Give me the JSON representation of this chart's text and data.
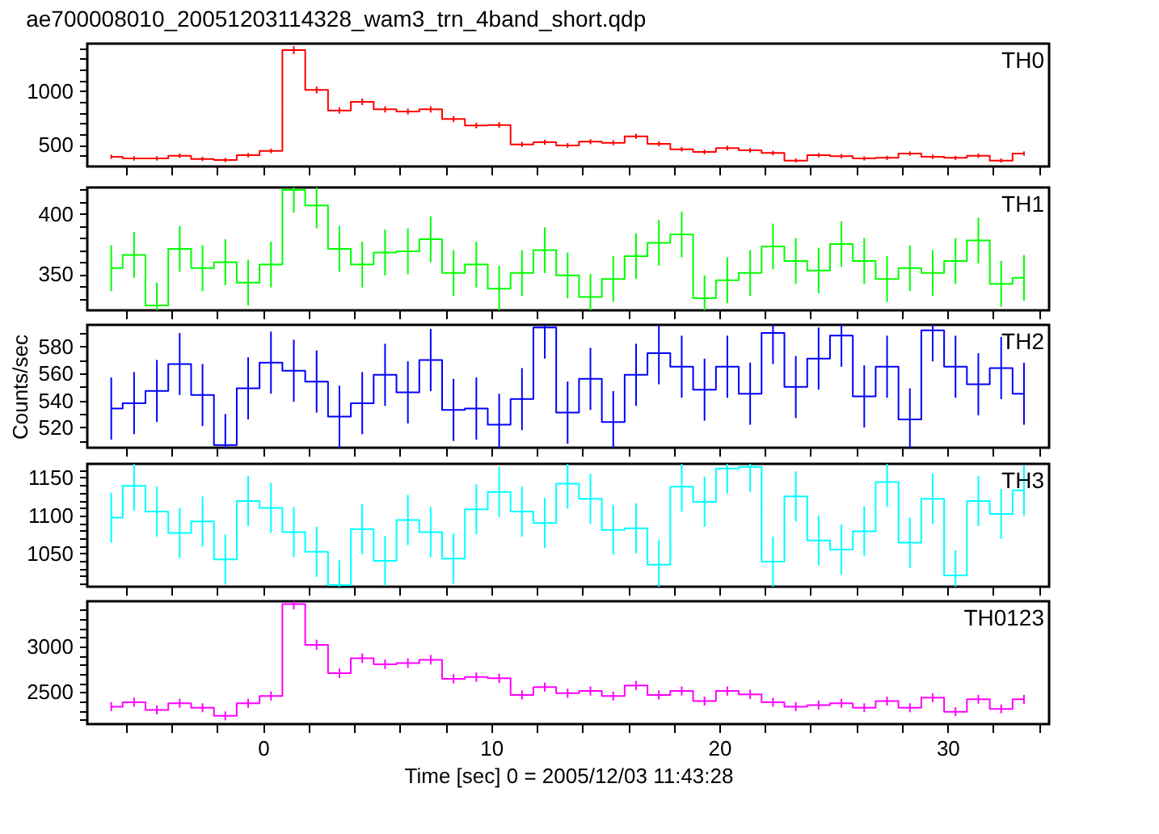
{
  "chart_data": [
    {
      "type": "step",
      "title": "ae700008010_20051203114328_wam3_trn_4band_short.qdp",
      "tick_labels": "y",
      "grid": false,
      "x": [
        -6.65,
        -5.65,
        -4.65,
        -3.65,
        -2.65,
        -1.65,
        -0.65,
        0.35,
        1.35,
        2.35,
        3.35,
        4.35,
        5.35,
        6.35,
        7.35,
        8.35,
        9.35,
        10.35,
        11.35,
        12.35,
        13.35,
        14.35,
        15.35,
        16.35,
        17.35,
        18.35,
        19.35,
        20.35,
        21.35,
        22.35,
        23.35,
        24.35,
        25.35,
        26.35,
        27.35,
        28.35,
        29.35,
        30.35,
        31.35,
        32.35,
        33.35
      ],
      "series": [
        {
          "name": "TH0",
          "color": "#ff0000",
          "values": [
            390,
            375,
            375,
            400,
            370,
            360,
            405,
            445,
            1380,
            1010,
            820,
            900,
            830,
            810,
            830,
            740,
            680,
            685,
            505,
            525,
            495,
            530,
            520,
            580,
            510,
            460,
            435,
            470,
            450,
            425,
            355,
            405,
            395,
            375,
            380,
            420,
            390,
            380,
            400,
            355,
            420
          ],
          "errors": [
            20,
            20,
            20,
            20,
            20,
            20,
            20,
            21,
            37,
            32,
            29,
            30,
            29,
            28,
            29,
            27,
            26,
            26,
            23,
            23,
            22,
            23,
            23,
            24,
            23,
            21,
            21,
            22,
            21,
            21,
            19,
            20,
            20,
            19,
            19,
            20,
            20,
            19,
            20,
            19,
            20
          ]
        }
      ],
      "xlim": [
        -7.7,
        34.45
      ],
      "xticks": [
        {
          "value": -6,
          "label": null
        },
        {
          "value": -4,
          "label": null
        },
        {
          "value": -2,
          "label": null
        },
        0,
        {
          "value": 2,
          "label": null
        },
        {
          "value": 4,
          "label": null
        },
        {
          "value": 6,
          "label": null
        },
        {
          "value": 8,
          "label": null
        },
        10,
        {
          "value": 12,
          "label": null
        },
        {
          "value": 14,
          "label": null
        },
        {
          "value": 16,
          "label": null
        },
        {
          "value": 18,
          "label": null
        },
        20,
        {
          "value": 22,
          "label": null
        },
        {
          "value": 24,
          "label": null
        },
        {
          "value": 26,
          "label": null
        },
        {
          "value": 28,
          "label": null
        },
        30,
        {
          "value": 32,
          "label": null
        },
        {
          "value": 34,
          "label": null
        }
      ],
      "ylim": [
        300,
        1440
      ],
      "yticks": [
        {
          "value": 400,
          "label": null
        },
        500,
        {
          "value": 600,
          "label": null
        },
        {
          "value": 700,
          "label": null
        },
        {
          "value": 800,
          "label": null
        },
        {
          "value": 900,
          "label": null
        },
        1000,
        {
          "value": 1100,
          "label": null
        },
        {
          "value": 1200,
          "label": null
        },
        {
          "value": 1300,
          "label": null
        },
        {
          "value": 1400,
          "label": null
        }
      ]
    },
    {
      "type": "step",
      "tick_labels": "y",
      "grid": false,
      "x": [
        -6.65,
        -5.65,
        -4.65,
        -3.65,
        -2.65,
        -1.65,
        -0.65,
        0.35,
        1.35,
        2.35,
        3.35,
        4.35,
        5.35,
        6.35,
        7.35,
        8.35,
        9.35,
        10.35,
        11.35,
        12.35,
        13.35,
        14.35,
        15.35,
        16.35,
        17.35,
        18.35,
        19.35,
        20.35,
        21.35,
        22.35,
        23.35,
        24.35,
        25.35,
        26.35,
        27.35,
        28.35,
        29.35,
        30.35,
        31.35,
        32.35,
        33.35
      ],
      "series": [
        {
          "name": "TH1",
          "color": "#00ff00",
          "values": [
            355,
            366,
            324,
            371,
            355,
            360,
            343,
            358,
            420,
            407,
            371,
            358,
            368,
            369,
            379,
            351,
            358,
            338,
            351,
            370,
            349,
            331,
            346,
            365,
            376,
            383,
            330,
            345,
            351,
            373,
            361,
            353,
            375,
            361,
            346,
            355,
            351,
            361,
            378,
            342,
            347
          ],
          "errors": [
            19,
            19,
            [
              320,
              343
            ],
            19,
            19,
            19,
            19,
            19,
            [
              401,
              422
            ],
            [
              388,
              422
            ],
            19,
            19,
            19,
            19,
            19,
            19,
            19,
            [
              320,
              357
            ],
            19,
            19,
            19,
            [
              320,
              350
            ],
            19,
            19,
            19,
            19,
            [
              320,
              349
            ],
            19,
            19,
            19,
            19,
            19,
            19,
            19,
            19,
            19,
            19,
            19,
            19,
            19,
            19
          ]
        }
      ],
      "xlim": [
        -7.7,
        34.45
      ],
      "xticks": [
        {
          "value": -6,
          "label": null
        },
        {
          "value": -4,
          "label": null
        },
        {
          "value": -2,
          "label": null
        },
        0,
        {
          "value": 2,
          "label": null
        },
        {
          "value": 4,
          "label": null
        },
        {
          "value": 6,
          "label": null
        },
        {
          "value": 8,
          "label": null
        },
        10,
        {
          "value": 12,
          "label": null
        },
        {
          "value": 14,
          "label": null
        },
        {
          "value": 16,
          "label": null
        },
        {
          "value": 18,
          "label": null
        },
        20,
        {
          "value": 22,
          "label": null
        },
        {
          "value": 24,
          "label": null
        },
        {
          "value": 26,
          "label": null
        },
        {
          "value": 28,
          "label": null
        },
        30,
        {
          "value": 32,
          "label": null
        },
        {
          "value": 34,
          "label": null
        }
      ],
      "ylim": [
        320,
        422
      ],
      "yticks": [
        {
          "value": 330,
          "label": null
        },
        {
          "value": 340,
          "label": null
        },
        350,
        {
          "value": 360,
          "label": null
        },
        {
          "value": 370,
          "label": null
        },
        {
          "value": 380,
          "label": null
        },
        {
          "value": 390,
          "label": null
        },
        400,
        {
          "value": 410,
          "label": null
        },
        {
          "value": 420,
          "label": null
        }
      ]
    },
    {
      "type": "step",
      "ylabel": "Counts/sec",
      "tick_labels": "y",
      "grid": false,
      "x": [
        -6.65,
        -5.65,
        -4.65,
        -3.65,
        -2.65,
        -1.65,
        -0.65,
        0.35,
        1.35,
        2.35,
        3.35,
        4.35,
        5.35,
        6.35,
        7.35,
        8.35,
        9.35,
        10.35,
        11.35,
        12.35,
        13.35,
        14.35,
        15.35,
        16.35,
        17.35,
        18.35,
        19.35,
        20.35,
        21.35,
        22.35,
        23.35,
        24.35,
        25.35,
        26.35,
        27.35,
        28.35,
        29.35,
        30.35,
        31.35,
        32.35,
        33.35
      ],
      "series": [
        {
          "name": "TH2",
          "color": "#0000ff",
          "values": [
            534,
            538,
            547,
            567,
            544,
            507,
            549,
            568,
            562,
            554,
            528,
            538,
            559,
            546,
            570,
            533,
            534,
            522,
            541,
            594,
            531,
            556,
            524,
            559,
            575,
            565,
            548,
            565,
            545,
            590,
            550,
            571,
            588,
            543,
            565,
            526,
            592,
            565,
            552,
            564,
            545
          ],
          "errors": [
            23,
            23,
            23,
            23,
            23,
            [
              505,
              530
            ],
            23,
            23,
            23,
            23,
            23,
            23,
            23,
            23,
            23,
            23,
            23,
            [
              505,
              545
            ],
            23,
            [
              571,
              596
            ],
            23,
            23,
            [
              505,
              547
            ],
            23,
            [
              552,
              596
            ],
            23,
            23,
            23,
            23,
            [
              567,
              596
            ],
            23,
            23,
            [
              565,
              596
            ],
            23,
            23,
            [
              505,
              549
            ],
            [
              569,
              596
            ],
            23,
            23,
            23,
            23
          ]
        }
      ],
      "xlim": [
        -7.7,
        34.45
      ],
      "xticks": [
        {
          "value": -6,
          "label": null
        },
        {
          "value": -4,
          "label": null
        },
        {
          "value": -2,
          "label": null
        },
        0,
        {
          "value": 2,
          "label": null
        },
        {
          "value": 4,
          "label": null
        },
        {
          "value": 6,
          "label": null
        },
        {
          "value": 8,
          "label": null
        },
        10,
        {
          "value": 12,
          "label": null
        },
        {
          "value": 14,
          "label": null
        },
        {
          "value": 16,
          "label": null
        },
        {
          "value": 18,
          "label": null
        },
        20,
        {
          "value": 22,
          "label": null
        },
        {
          "value": 24,
          "label": null
        },
        {
          "value": 26,
          "label": null
        },
        {
          "value": 28,
          "label": null
        },
        30,
        {
          "value": 32,
          "label": null
        },
        {
          "value": 34,
          "label": null
        }
      ],
      "ylim": [
        505,
        596
      ],
      "yticks": [
        {
          "value": 510,
          "label": null
        },
        520,
        {
          "value": 530,
          "label": null
        },
        540,
        {
          "value": 550,
          "label": null
        },
        560,
        {
          "value": 570,
          "label": null
        },
        580,
        {
          "value": 590,
          "label": null
        }
      ]
    },
    {
      "type": "step",
      "tick_labels": "y",
      "grid": false,
      "x": [
        -6.65,
        -5.65,
        -4.65,
        -3.65,
        -2.65,
        -1.65,
        -0.65,
        0.35,
        1.35,
        2.35,
        3.35,
        4.35,
        5.35,
        6.35,
        7.35,
        8.35,
        9.35,
        10.35,
        11.35,
        12.35,
        13.35,
        14.35,
        15.35,
        16.35,
        17.35,
        18.35,
        19.35,
        20.35,
        21.35,
        22.35,
        23.35,
        24.35,
        25.35,
        26.35,
        27.35,
        28.35,
        29.35,
        30.35,
        31.35,
        32.35,
        33.35
      ],
      "series": [
        {
          "name": "TH3",
          "color": "#00ffff",
          "values": [
            1097,
            1139,
            1105,
            1077,
            1092,
            1042,
            1119,
            1110,
            1078,
            1052,
            1008,
            1082,
            1040,
            1094,
            1078,
            1043,
            1108,
            1131,
            1105,
            1090,
            1142,
            1122,
            1081,
            1083,
            1035,
            1138,
            1118,
            1162,
            1164,
            1039,
            1125,
            1067,
            1055,
            1079,
            1144,
            1064,
            1122,
            1021,
            1119,
            1102,
            1133
          ],
          "errors": [
            33,
            [
              1106,
              1168
            ],
            33,
            33,
            33,
            33,
            33,
            33,
            33,
            33,
            [
              1006,
              1041
            ],
            33,
            33,
            33,
            33,
            33,
            33,
            33,
            33,
            33,
            [
              1109,
              1168
            ],
            33,
            33,
            33,
            [
              1006,
              1068
            ],
            [
              1105,
              1168
            ],
            33,
            [
              1129,
              1168
            ],
            [
              1131,
              1168
            ],
            33,
            33,
            33,
            33,
            33,
            [
              1111,
              1168
            ],
            33,
            33,
            [
              1006,
              1054
            ],
            33,
            33,
            33
          ]
        }
      ],
      "xlim": [
        -7.7,
        34.45
      ],
      "xticks": [
        {
          "value": -6,
          "label": null
        },
        {
          "value": -4,
          "label": null
        },
        {
          "value": -2,
          "label": null
        },
        0,
        {
          "value": 2,
          "label": null
        },
        {
          "value": 4,
          "label": null
        },
        {
          "value": 6,
          "label": null
        },
        {
          "value": 8,
          "label": null
        },
        10,
        {
          "value": 12,
          "label": null
        },
        {
          "value": 14,
          "label": null
        },
        {
          "value": 16,
          "label": null
        },
        {
          "value": 18,
          "label": null
        },
        20,
        {
          "value": 22,
          "label": null
        },
        {
          "value": 24,
          "label": null
        },
        {
          "value": 26,
          "label": null
        },
        {
          "value": 28,
          "label": null
        },
        30,
        {
          "value": 32,
          "label": null
        },
        {
          "value": 34,
          "label": null
        }
      ],
      "ylim": [
        1006,
        1168
      ],
      "yticks": [
        {
          "value": 1010,
          "label": null
        },
        {
          "value": 1020,
          "label": null
        },
        {
          "value": 1030,
          "label": null
        },
        {
          "value": 1040,
          "label": null
        },
        1050,
        {
          "value": 1060,
          "label": null
        },
        {
          "value": 1070,
          "label": null
        },
        {
          "value": 1080,
          "label": null
        },
        {
          "value": 1090,
          "label": null
        },
        1100,
        {
          "value": 1110,
          "label": null
        },
        {
          "value": 1120,
          "label": null
        },
        {
          "value": 1130,
          "label": null
        },
        {
          "value": 1140,
          "label": null
        },
        1150,
        {
          "value": 1160,
          "label": null
        }
      ]
    },
    {
      "type": "step",
      "xlabel": "Time [sec] 0 = 2005/12/03 11:43:28",
      "grid": false,
      "x": [
        -6.65,
        -5.65,
        -4.65,
        -3.65,
        -2.65,
        -1.65,
        -0.65,
        0.35,
        1.35,
        2.35,
        3.35,
        4.35,
        5.35,
        6.35,
        7.35,
        8.35,
        9.35,
        10.35,
        11.35,
        12.35,
        13.35,
        14.35,
        15.35,
        16.35,
        17.35,
        18.35,
        19.35,
        20.35,
        21.35,
        22.35,
        23.35,
        24.35,
        25.35,
        26.35,
        27.35,
        28.35,
        29.35,
        30.35,
        31.35,
        32.35,
        33.35
      ],
      "series": [
        {
          "name": "TH0123",
          "color": "#ff00ff",
          "values": [
            2341,
            2390,
            2305,
            2378,
            2329,
            2240,
            2378,
            2457,
            3464,
            3018,
            2707,
            2872,
            2805,
            2817,
            2854,
            2646,
            2665,
            2652,
            2469,
            2555,
            2488,
            2512,
            2457,
            2573,
            2469,
            2512,
            2402,
            2512,
            2475,
            2390,
            2341,
            2359,
            2378,
            2329,
            2402,
            2329,
            2439,
            2286,
            2421,
            2317,
            2421
          ],
          "errors": [
            49,
            49,
            49,
            49,
            49,
            49,
            49,
            50,
            [
              3405,
              3495
            ],
            55,
            52,
            52,
            52,
            52,
            52,
            51,
            51,
            51,
            50,
            50,
            50,
            50,
            50,
            50,
            50,
            50,
            49,
            50,
            50,
            49,
            49,
            49,
            49,
            49,
            49,
            49,
            49,
            49,
            49,
            49,
            49
          ]
        }
      ],
      "xlim": [
        -7.7,
        34.45
      ],
      "xticks": [
        {
          "value": -6,
          "label": null
        },
        {
          "value": -4,
          "label": null
        },
        {
          "value": -2,
          "label": null
        },
        0,
        {
          "value": 2,
          "label": null
        },
        {
          "value": 4,
          "label": null
        },
        {
          "value": 6,
          "label": null
        },
        {
          "value": 8,
          "label": null
        },
        10,
        {
          "value": 12,
          "label": null
        },
        {
          "value": 14,
          "label": null
        },
        {
          "value": 16,
          "label": null
        },
        {
          "value": 18,
          "label": null
        },
        20,
        {
          "value": 22,
          "label": null
        },
        {
          "value": 24,
          "label": null
        },
        {
          "value": 26,
          "label": null
        },
        {
          "value": 28,
          "label": null
        },
        30,
        {
          "value": 32,
          "label": null
        },
        {
          "value": 34,
          "label": null
        }
      ],
      "ylim": [
        2150,
        3495
      ],
      "yticks": [
        {
          "value": 2200,
          "label": null
        },
        {
          "value": 2300,
          "label": null
        },
        {
          "value": 2400,
          "label": null
        },
        2500,
        {
          "value": 2600,
          "label": null
        },
        {
          "value": 2700,
          "label": null
        },
        {
          "value": 2800,
          "label": null
        },
        {
          "value": 2900,
          "label": null
        },
        3000,
        {
          "value": 3100,
          "label": null
        },
        {
          "value": 3200,
          "label": null
        },
        {
          "value": 3300,
          "label": null
        },
        {
          "value": 3400,
          "label": null
        }
      ]
    }
  ]
}
